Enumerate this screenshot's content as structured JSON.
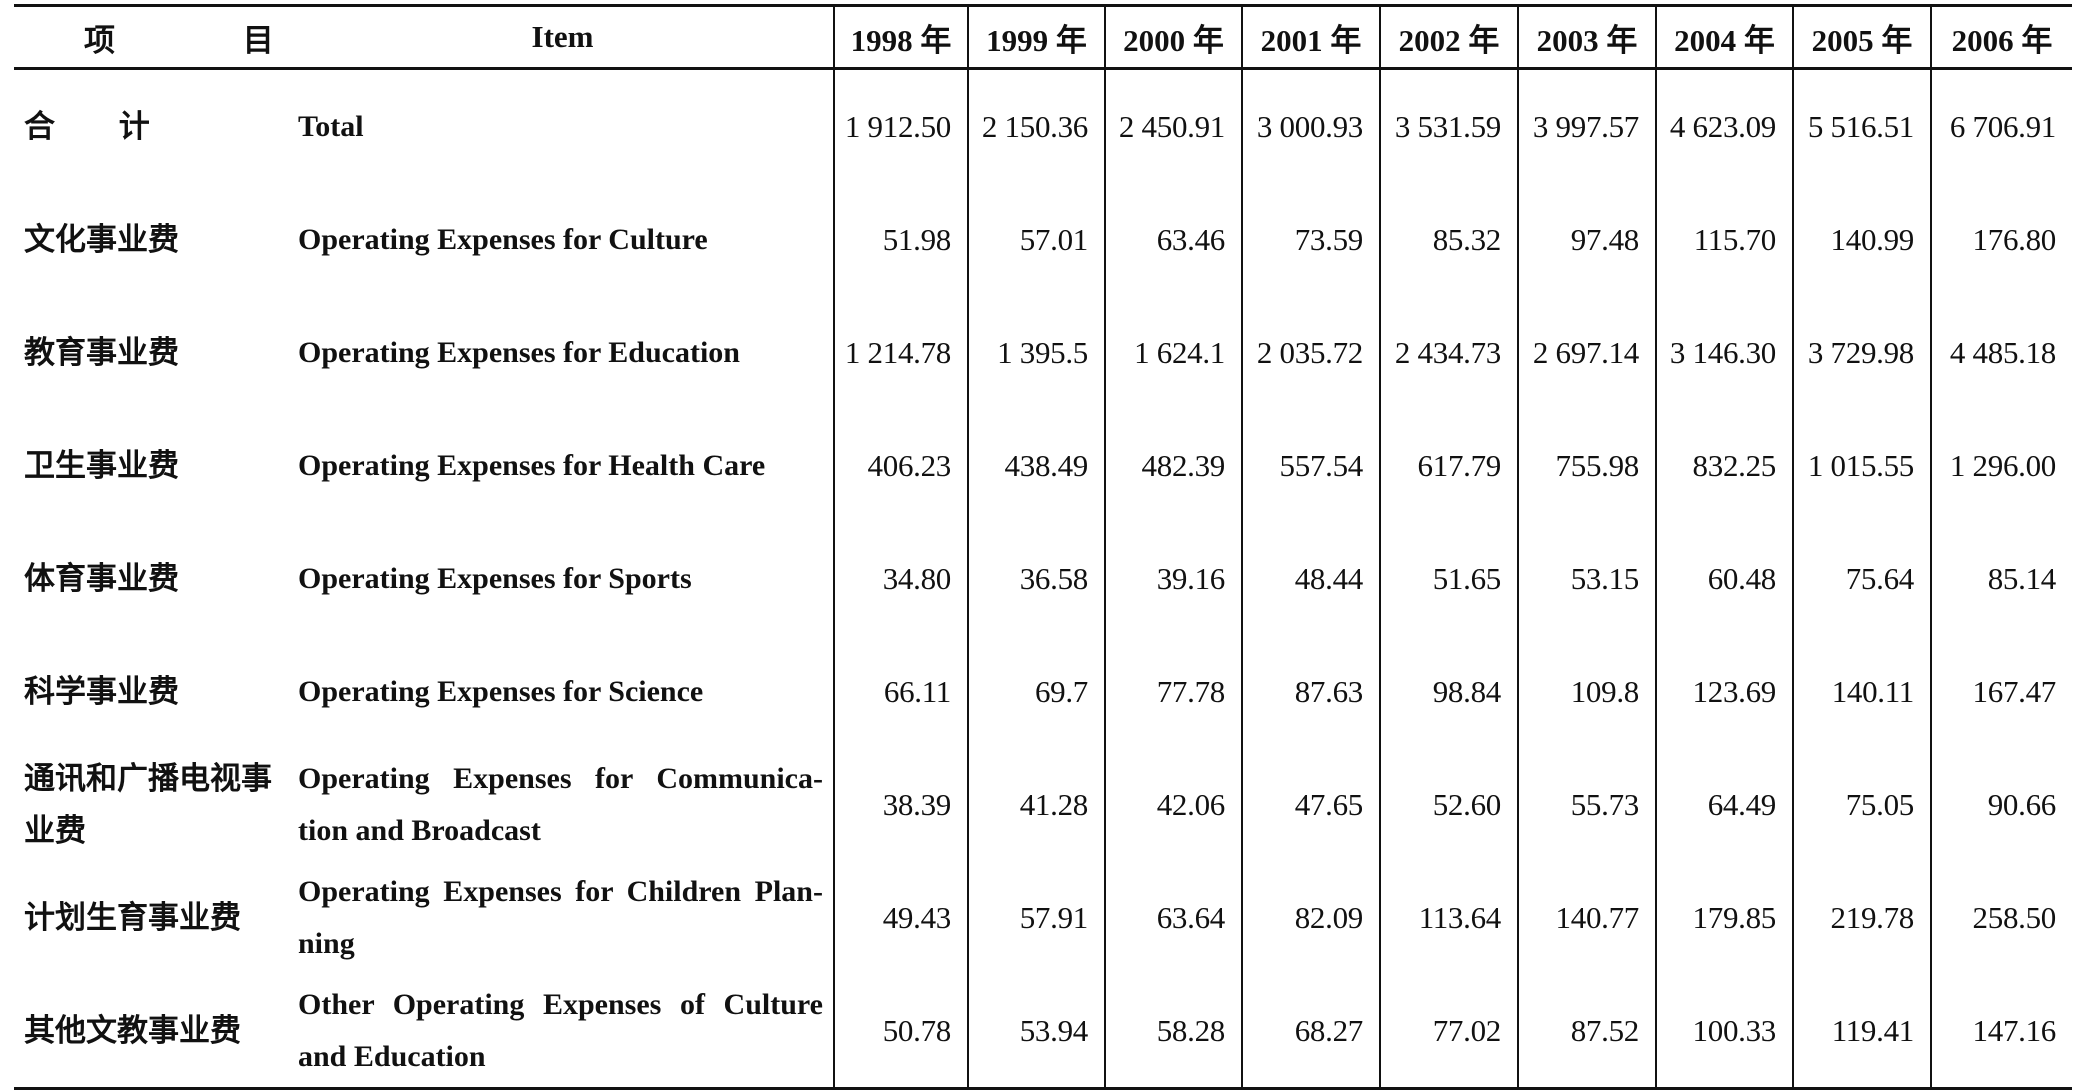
{
  "table": {
    "header": {
      "item_zh": "项 目",
      "item_en": "Item",
      "years": [
        "1998 年",
        "1999 年",
        "2000 年",
        "2001 年",
        "2002 年",
        "2003 年",
        "2004 年",
        "2005 年",
        "2006 年"
      ]
    },
    "rows": [
      {
        "zh": "合 计",
        "en": "Total",
        "values": [
          "1 912.50",
          "2 150.36",
          "2 450.91",
          "3 000.93",
          "3 531.59",
          "3 997.57",
          "4 623.09",
          "5 516.51",
          "6 706.91"
        ]
      },
      {
        "zh": "文化事业费",
        "en": "Operating Expenses for Culture",
        "values": [
          "51.98",
          "57.01",
          "63.46",
          "73.59",
          "85.32",
          "97.48",
          "115.70",
          "140.99",
          "176.80"
        ]
      },
      {
        "zh": "教育事业费",
        "en": "Operating Expenses for Education",
        "values": [
          "1 214.78",
          "1 395.5",
          "1 624.1",
          "2 035.72",
          "2 434.73",
          "2 697.14",
          "3 146.30",
          "3 729.98",
          "4 485.18"
        ]
      },
      {
        "zh": "卫生事业费",
        "en": "Operating Expenses for Health Care",
        "values": [
          "406.23",
          "438.49",
          "482.39",
          "557.54",
          "617.79",
          "755.98",
          "832.25",
          "1 015.55",
          "1 296.00"
        ]
      },
      {
        "zh": "体育事业费",
        "en": "Operating Expenses for Sports",
        "values": [
          "34.80",
          "36.58",
          "39.16",
          "48.44",
          "51.65",
          "53.15",
          "60.48",
          "75.64",
          "85.14"
        ]
      },
      {
        "zh": "科学事业费",
        "en": "Operating Expenses for Science",
        "values": [
          "66.11",
          "69.7",
          "77.78",
          "87.63",
          "98.84",
          "109.8",
          "123.69",
          "140.11",
          "167.47"
        ]
      },
      {
        "zh": "通讯和广播电视事业费",
        "en": "Operating Expenses for Communica-tion and Broadcast",
        "values": [
          "38.39",
          "41.28",
          "42.06",
          "47.65",
          "52.60",
          "55.73",
          "64.49",
          "75.05",
          "90.66"
        ]
      },
      {
        "zh": "计划生育事业费",
        "en": "Operating Expenses for Children Plan-ning",
        "values": [
          "49.43",
          "57.91",
          "63.64",
          "82.09",
          "113.64",
          "140.77",
          "179.85",
          "219.78",
          "258.50"
        ]
      },
      {
        "zh": "其他文教事业费",
        "en": "Other Operating Expenses of Culture and Education",
        "values": [
          "50.78",
          "53.94",
          "58.28",
          "68.27",
          "77.02",
          "87.52",
          "100.33",
          "119.41",
          "147.16"
        ]
      }
    ]
  }
}
